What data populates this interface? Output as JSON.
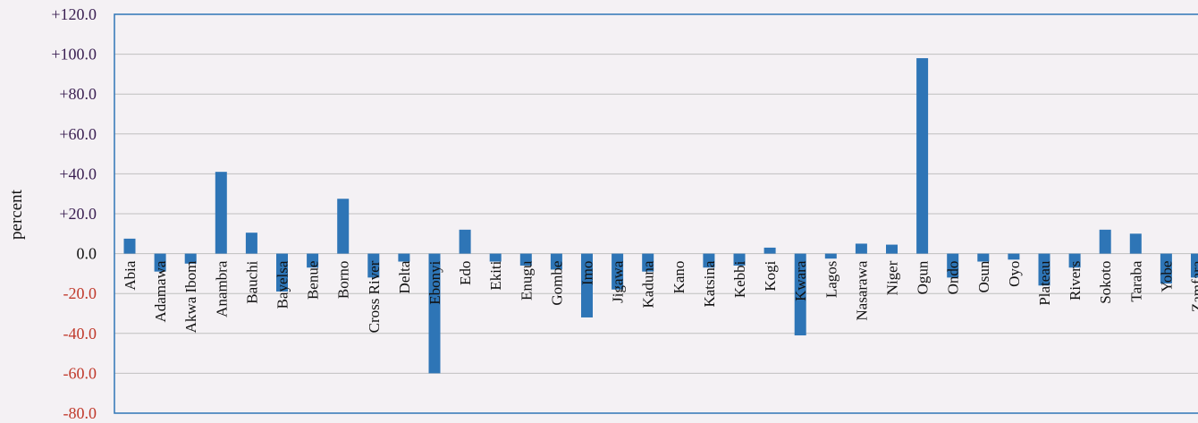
{
  "chart_data": {
    "type": "bar",
    "ylabel": "percent",
    "ylim": [
      -80,
      120
    ],
    "yticks": [
      "+120.0",
      "+100.0",
      "+80.0",
      "+60.0",
      "+40.0",
      "+20.0",
      "0.0",
      "-20.0",
      "-40.0",
      "-60.0",
      "-80.0"
    ],
    "ytick_values": [
      120,
      100,
      80,
      60,
      40,
      20,
      0,
      -20,
      -40,
      -60,
      -80
    ],
    "grid": true,
    "colors": {
      "bar": "#2e75b6",
      "positive_tick": "#3a1f52",
      "zero_tick": "#111111",
      "negative_tick": "#c0392b",
      "frame": "#2e75b6",
      "grid": "#bfbfbf"
    },
    "categories": [
      "Abia",
      "Adamawa",
      "Akwa Ibom",
      "Anambra",
      "Bauchi",
      "Bayelsa",
      "Benue",
      "Borno",
      "Cross River",
      "Delta",
      "Ebonyi",
      "Edo",
      "Ekiti",
      "Enugu",
      "Gombe",
      "Imo",
      "Jigawa",
      "Kaduna",
      "Kano",
      "Katsina",
      "Kebbi",
      "Kogi",
      "Kwara",
      "Lagos",
      "Nasarawa",
      "Niger",
      "Ogun",
      "Ondo",
      "Osun",
      "Oyo",
      "Plateau",
      "Rivers",
      "Sokoto",
      "Taraba",
      "Yobe",
      "Zamfara"
    ],
    "values": [
      7.5,
      -9,
      -5,
      41,
      10.5,
      -19,
      -7,
      27.5,
      -12,
      -4,
      -60,
      12,
      -4,
      -6,
      -8,
      -32,
      -18,
      -9,
      0,
      -7,
      -6,
      3,
      -41,
      -2.5,
      5,
      4.5,
      98,
      -12,
      -4,
      -3,
      -16,
      -7,
      12,
      10,
      -15,
      -12
    ]
  }
}
